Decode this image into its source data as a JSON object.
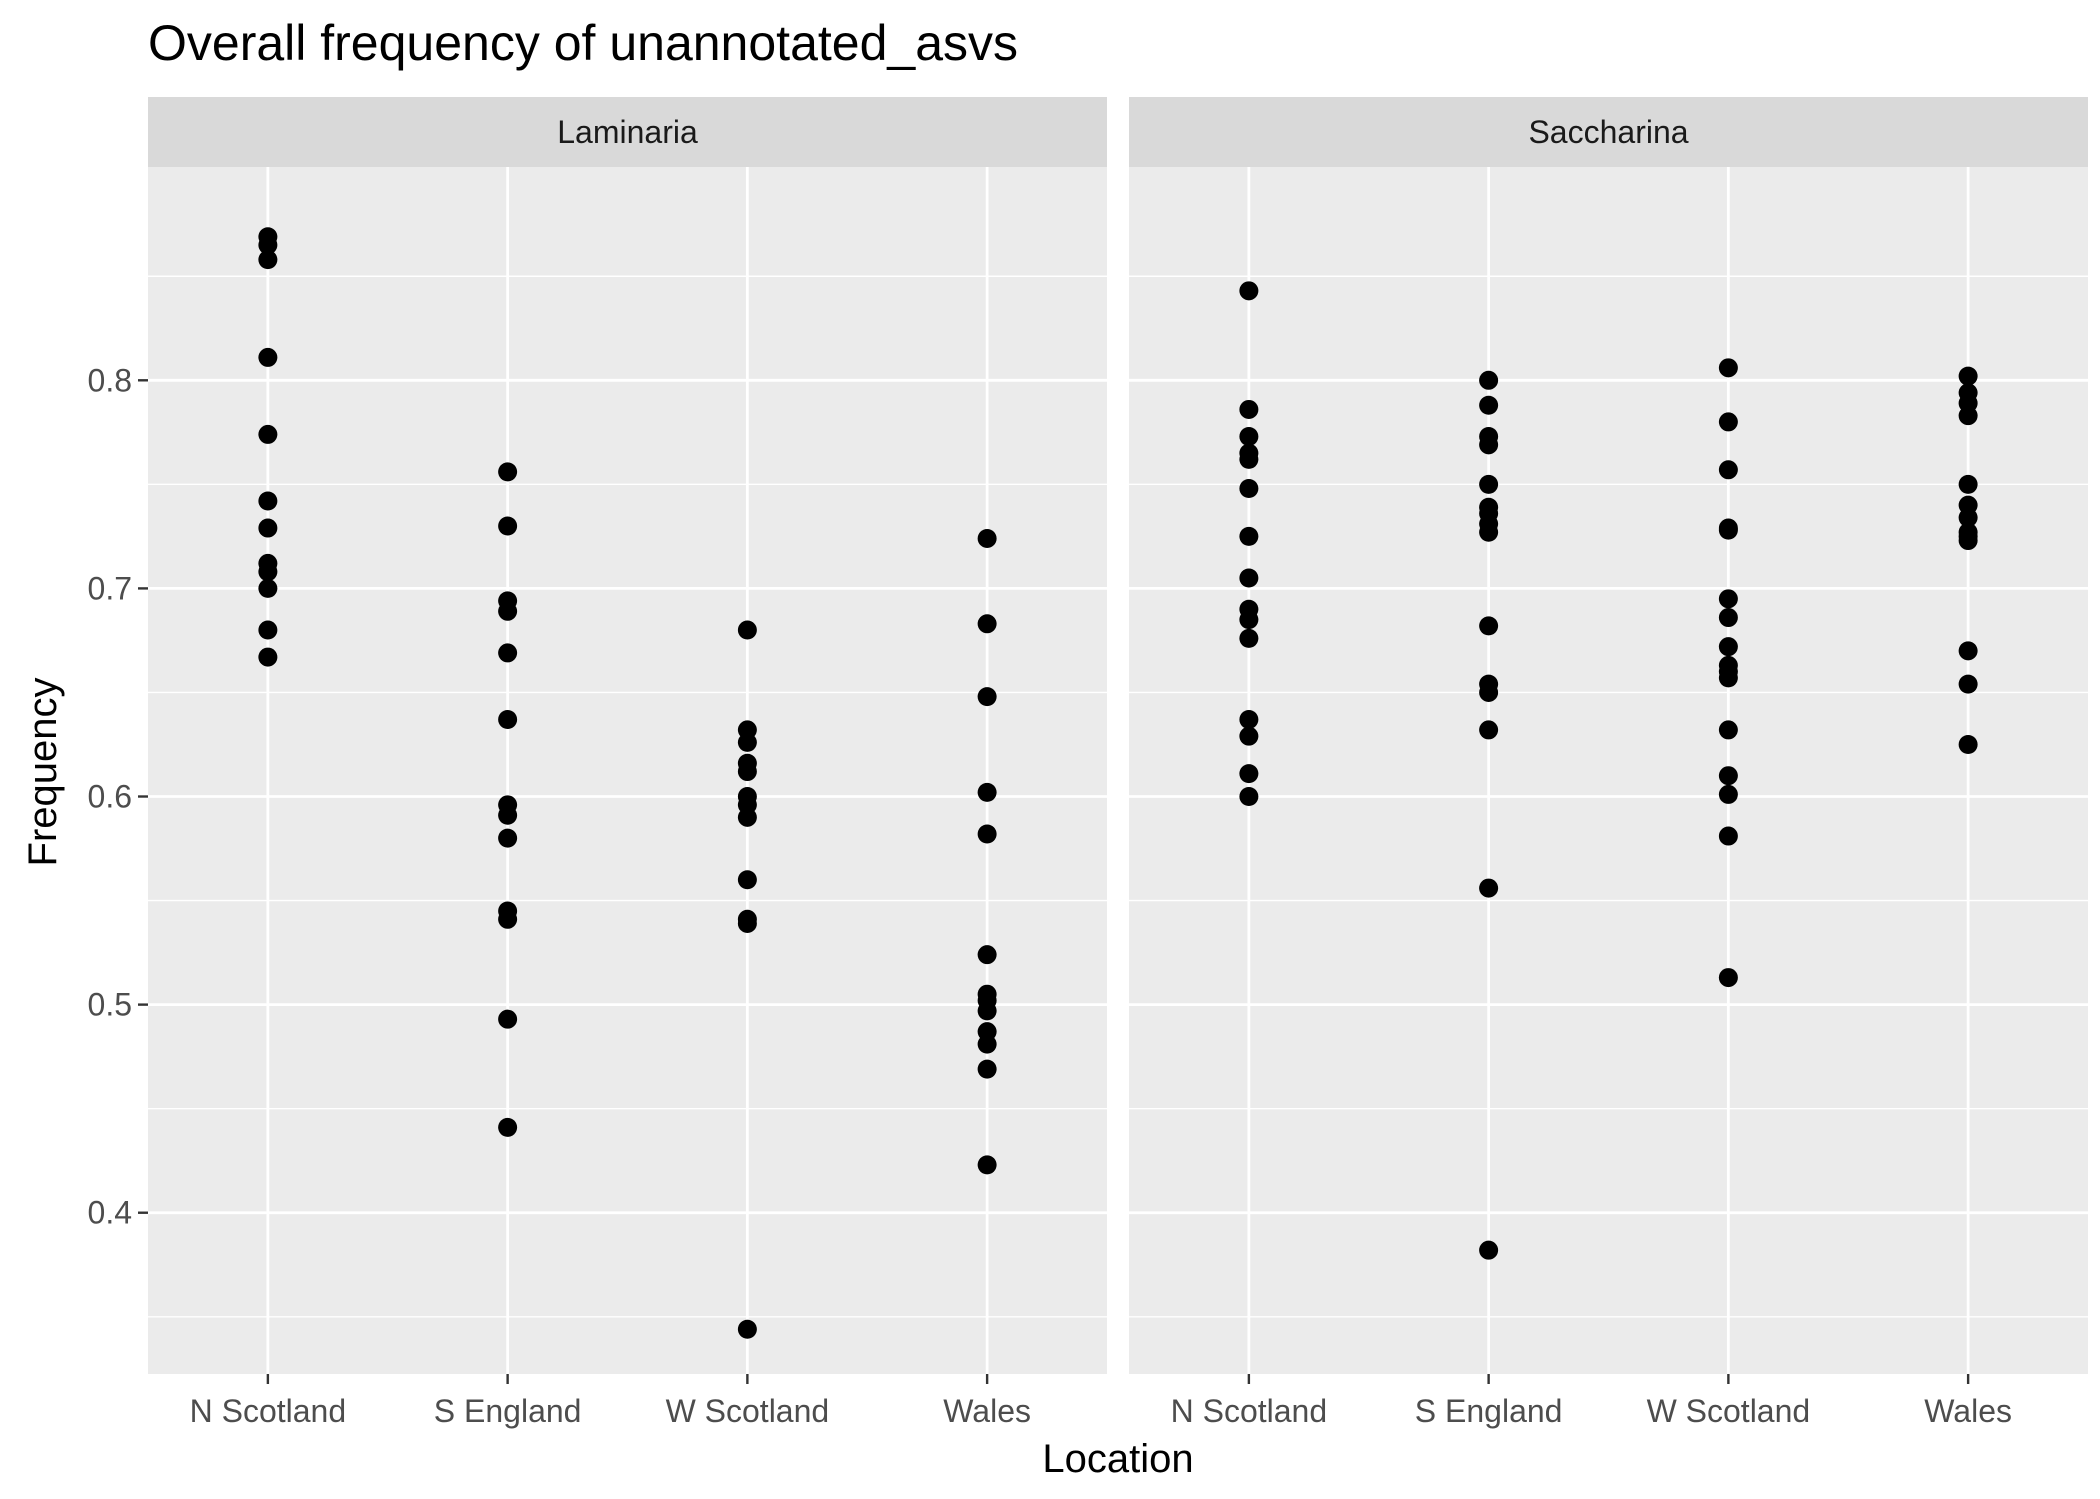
{
  "chart_data": {
    "type": "scatter",
    "title": "Overall frequency of unannotated_asvs",
    "xlabel": "Location",
    "ylabel": "Frequency",
    "categories": [
      "N Scotland",
      "S England",
      "W Scotland",
      "Wales"
    ],
    "y_ticks": [
      {
        "value": 0.4,
        "label": "0.4"
      },
      {
        "value": 0.5,
        "label": "0.5"
      },
      {
        "value": 0.6,
        "label": "0.6"
      },
      {
        "value": 0.7,
        "label": "0.7"
      },
      {
        "value": 0.8,
        "label": "0.8"
      }
    ],
    "ylim": [
      0.3225,
      0.9025
    ],
    "grid": true,
    "point_color": "#000000",
    "panel_background": "#ebebeb",
    "strip_background": "#d9d9d9",
    "grid_color": "#ffffff",
    "panels": [
      {
        "name": "Laminaria",
        "points": {
          "N Scotland": [
            0.869,
            0.865,
            0.858,
            0.811,
            0.774,
            0.742,
            0.729,
            0.712,
            0.708,
            0.7,
            0.68,
            0.667
          ],
          "S England": [
            0.756,
            0.73,
            0.694,
            0.689,
            0.669,
            0.637,
            0.596,
            0.591,
            0.58,
            0.545,
            0.541,
            0.493,
            0.441
          ],
          "W Scotland": [
            0.68,
            0.632,
            0.626,
            0.616,
            0.612,
            0.6,
            0.596,
            0.59,
            0.56,
            0.541,
            0.539,
            0.344
          ],
          "Wales": [
            0.724,
            0.683,
            0.648,
            0.602,
            0.582,
            0.524,
            0.505,
            0.502,
            0.497,
            0.487,
            0.481,
            0.469,
            0.423
          ]
        }
      },
      {
        "name": "Saccharina",
        "points": {
          "N Scotland": [
            0.843,
            0.786,
            0.773,
            0.765,
            0.762,
            0.748,
            0.725,
            0.705,
            0.69,
            0.685,
            0.676,
            0.637,
            0.629,
            0.611,
            0.6
          ],
          "S England": [
            0.8,
            0.788,
            0.773,
            0.769,
            0.75,
            0.739,
            0.736,
            0.731,
            0.727,
            0.682,
            0.654,
            0.65,
            0.632,
            0.556,
            0.382
          ],
          "W Scotland": [
            0.806,
            0.78,
            0.757,
            0.729,
            0.728,
            0.695,
            0.686,
            0.672,
            0.663,
            0.66,
            0.657,
            0.632,
            0.61,
            0.601,
            0.581,
            0.513
          ],
          "Wales": [
            0.802,
            0.794,
            0.789,
            0.783,
            0.75,
            0.74,
            0.734,
            0.727,
            0.725,
            0.723,
            0.67,
            0.654,
            0.625
          ]
        }
      }
    ]
  }
}
